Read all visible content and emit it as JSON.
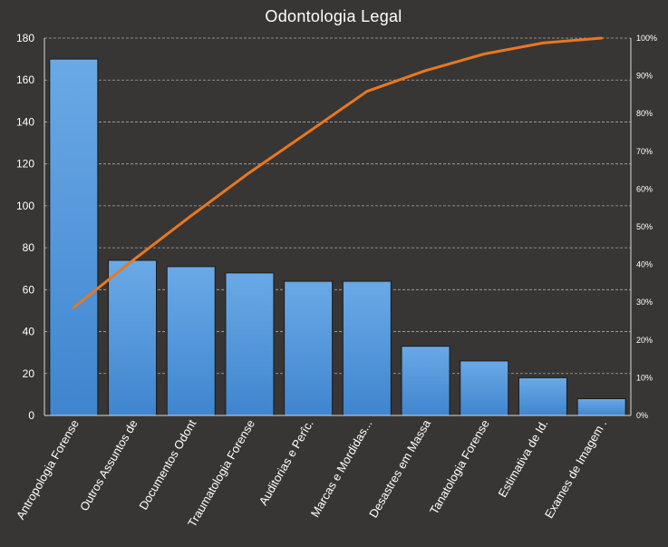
{
  "chart_data": {
    "type": "bar",
    "title": "Odontologia  Legal",
    "categories": [
      "Antropologia Forense",
      "Outros Assuntos de",
      "Documentos Odont",
      "Traumatologia Forense",
      "Auditorias e Perîc.",
      "Marcas e Mordidas...",
      "Desastres em Massa",
      "Tanatologia Forense",
      "Estimativa de Id.",
      "Exames de Imagem ."
    ],
    "series": [
      {
        "type": "bar",
        "values": [
          170,
          74,
          71,
          68,
          64,
          64,
          33,
          26,
          18,
          8
        ],
        "color": "#4a90d9",
        "axis": "left"
      },
      {
        "type": "line",
        "values": [
          28.6,
          41.0,
          52.9,
          64.4,
          75.1,
          85.9,
          91.4,
          95.8,
          98.7,
          100
        ],
        "color": "#e87722",
        "axis": "right"
      }
    ],
    "ylim": [
      0,
      180
    ],
    "yticks": [
      "0",
      "20",
      "40",
      "60",
      "80",
      "100",
      "120",
      "140",
      "160",
      "180"
    ],
    "y2lim": [
      0,
      100
    ],
    "y2ticks": [
      "0%",
      "10%",
      "20%",
      "30%",
      "40%",
      "50%",
      "60%",
      "70%",
      "80%",
      "90%",
      "100%"
    ],
    "grid": true,
    "legend": "none",
    "background": "#383634"
  }
}
